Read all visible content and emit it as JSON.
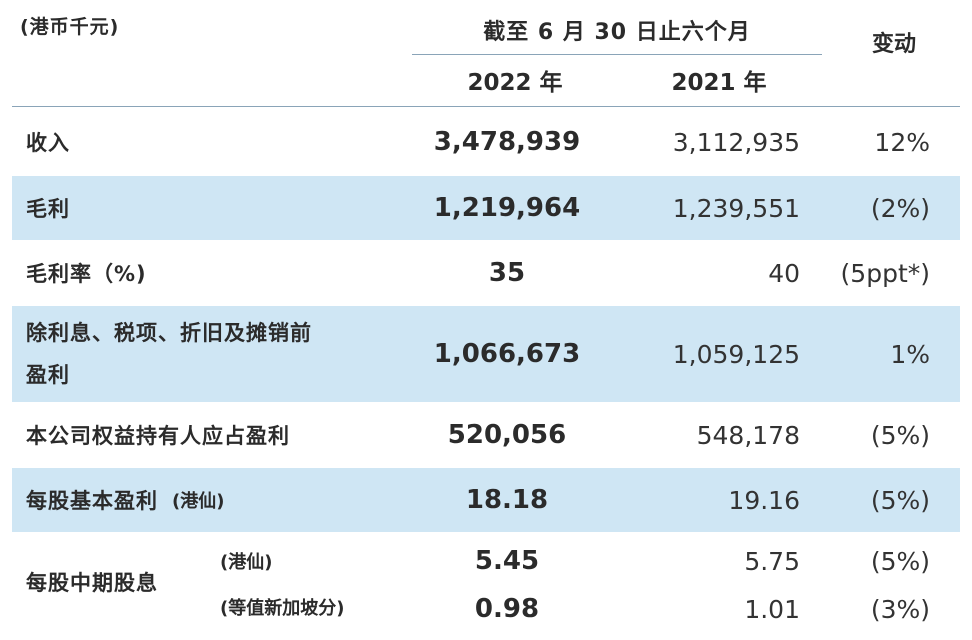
{
  "header": {
    "unit": "(港币千元)",
    "period": "截至 6 月 30 日止六个月",
    "year_2022": "2022 年",
    "year_2021": "2021 年",
    "change": "变动"
  },
  "rows": [
    {
      "label": "收入",
      "v2022": "3,478,939",
      "v2021": "3,112,935",
      "change": "12%"
    },
    {
      "label": "毛利",
      "v2022": "1,219,964",
      "v2021": "1,239,551",
      "change": "(2%)"
    },
    {
      "label": "毛利率（%)",
      "v2022": "35",
      "v2021": "40",
      "change": "(5ppt*)"
    },
    {
      "label_line1": "除利息、税项、折旧及摊销前",
      "label_line2": "盈利",
      "v2022": "1,066,673",
      "v2021": "1,059,125",
      "change": "1%"
    },
    {
      "label": "本公司权益持有人应占盈利",
      "v2022": "520,056",
      "v2021": "548,178",
      "change": "(5%)"
    },
    {
      "label": "每股基本盈利",
      "unit": "(港仙)",
      "v2022": "18.18",
      "v2021": "19.16",
      "change": "(5%)"
    }
  ],
  "dividend": {
    "label": "每股中期股息",
    "line1": {
      "unit": "(港仙)",
      "v2022": "5.45",
      "v2021": "5.75",
      "change": "(5%)"
    },
    "line2": {
      "unit": "(等值新加坡分)",
      "v2022": "0.98",
      "v2021": "1.01",
      "change": "(3%)"
    }
  },
  "colors": {
    "shade": "#cfe6f4",
    "rule": "#8aa4b8"
  }
}
